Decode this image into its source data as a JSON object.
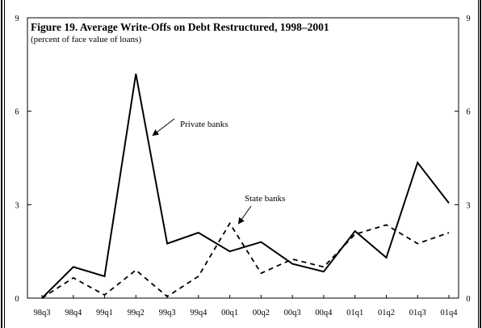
{
  "chart_data": {
    "type": "line",
    "title": "Figure 19. Average Write-Offs on Debt Restructured, 1998–2001",
    "subtitle": "(percent of face value of loans)",
    "xlabel": "",
    "ylabel": "",
    "categories": [
      "98q3",
      "98q4",
      "99q1",
      "99q2",
      "99q3",
      "99q4",
      "00q1",
      "00q2",
      "00q3",
      "00q4",
      "01q1",
      "01q2",
      "01q3",
      "01q4"
    ],
    "ylim": [
      0,
      9
    ],
    "y_ticks_left": [
      "0",
      "3",
      "6",
      "9"
    ],
    "y_ticks_right": [
      "0",
      "3",
      "6",
      "9"
    ],
    "grid": false,
    "legend": "none",
    "series": [
      {
        "name": "Private banks",
        "style": "solid",
        "color": "#000000",
        "values": [
          0.0,
          1.0,
          0.7,
          7.2,
          1.75,
          2.1,
          1.5,
          1.8,
          1.1,
          0.85,
          2.15,
          1.3,
          4.35,
          3.05
        ]
      },
      {
        "name": "State banks",
        "style": "dashed",
        "color": "#000000",
        "values": [
          0.0,
          0.65,
          0.1,
          0.9,
          0.05,
          0.7,
          2.4,
          0.8,
          1.25,
          1.0,
          2.05,
          2.35,
          1.75,
          2.1
        ]
      }
    ],
    "annotations": [
      {
        "text": "Private banks",
        "series": 0
      },
      {
        "text": "State banks",
        "series": 1
      }
    ]
  }
}
